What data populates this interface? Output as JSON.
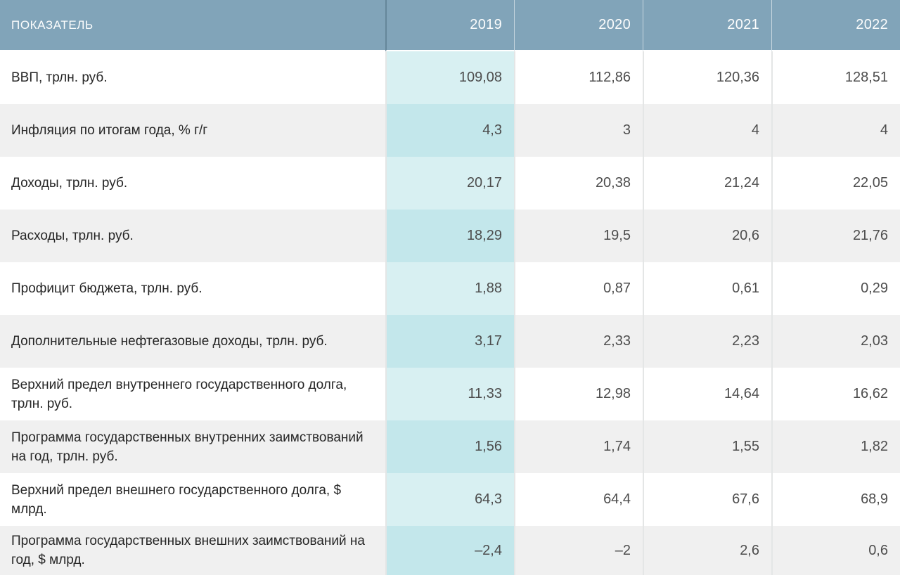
{
  "table": {
    "header": {
      "indicator": "ПОКАЗАТЕЛЬ",
      "years": [
        "2019",
        "2020",
        "2021",
        "2022"
      ]
    },
    "rows": [
      {
        "label": "ВВП, трлн. руб.",
        "values": [
          "109,08",
          "112,86",
          "120,36",
          "128,51"
        ]
      },
      {
        "label": "Инфляция по итогам года, % г/г",
        "values": [
          "4,3",
          "3",
          "4",
          "4"
        ]
      },
      {
        "label": "Доходы, трлн. руб.",
        "values": [
          "20,17",
          "20,38",
          "21,24",
          "22,05"
        ]
      },
      {
        "label": "Расходы, трлн. руб.",
        "values": [
          "18,29",
          "19,5",
          "20,6",
          "21,76"
        ]
      },
      {
        "label": "Профицит бюджета, трлн. руб.",
        "values": [
          "1,88",
          "0,87",
          "0,61",
          "0,29"
        ]
      },
      {
        "label": "Дополнительные нефтегазовые доходы, трлн. руб.",
        "values": [
          "3,17",
          "2,33",
          "2,23",
          "2,03"
        ]
      },
      {
        "label": "Верхний предел внутреннего государственного долга, трлн. руб.",
        "values": [
          "11,33",
          "12,98",
          "14,64",
          "16,62"
        ]
      },
      {
        "label": "Программа государственных внутренних заимствований на год, трлн. руб.",
        "values": [
          "1,56",
          "1,74",
          "1,55",
          "1,82"
        ]
      },
      {
        "label": "Верхний предел внешнего государственного долга, $ млрд.",
        "values": [
          "64,3",
          "64,4",
          "67,6",
          "68,9"
        ]
      },
      {
        "label": "Программа государственных внешних заимствований на год, $ млрд.",
        "values": [
          "–2,4",
          "–2",
          "2,6",
          "0,6"
        ]
      }
    ],
    "colors": {
      "header_bg": "#81a4b9",
      "header_text": "#fcfdfd",
      "row_odd_bg": "#ffffff",
      "row_even_bg": "#f0f0f0",
      "year2019_odd_bg": "#d8f0f2",
      "year2019_even_bg": "#c3e7eb",
      "label_text": "#262626",
      "value_text": "#4d4d4d",
      "column_divider": "#e4e6e6"
    }
  },
  "chart_data": {
    "type": "table",
    "title": "",
    "columns": [
      "ПОКАЗАТЕЛЬ",
      "2019",
      "2020",
      "2021",
      "2022"
    ],
    "x": [
      2019,
      2020,
      2021,
      2022
    ],
    "series": [
      {
        "name": "ВВП, трлн. руб.",
        "values": [
          109.08,
          112.86,
          120.36,
          128.51
        ]
      },
      {
        "name": "Инфляция по итогам года, % г/г",
        "values": [
          4.3,
          3,
          4,
          4
        ]
      },
      {
        "name": "Доходы, трлн. руб.",
        "values": [
          20.17,
          20.38,
          21.24,
          22.05
        ]
      },
      {
        "name": "Расходы, трлн. руб.",
        "values": [
          18.29,
          19.5,
          20.6,
          21.76
        ]
      },
      {
        "name": "Профицит бюджета, трлн. руб.",
        "values": [
          1.88,
          0.87,
          0.61,
          0.29
        ]
      },
      {
        "name": "Дополнительные нефтегазовые доходы, трлн. руб.",
        "values": [
          3.17,
          2.33,
          2.23,
          2.03
        ]
      },
      {
        "name": "Верхний предел внутреннего государственного долга, трлн. руб.",
        "values": [
          11.33,
          12.98,
          14.64,
          16.62
        ]
      },
      {
        "name": "Программа государственных внутренних заимствований на год, трлн. руб.",
        "values": [
          1.56,
          1.74,
          1.55,
          1.82
        ]
      },
      {
        "name": "Верхний предел внешнего государственного долга, $ млрд.",
        "values": [
          64.3,
          64.4,
          67.6,
          68.9
        ]
      },
      {
        "name": "Программа государственных внешних заимствований на год, $ млрд.",
        "values": [
          -2.4,
          -2,
          2.6,
          0.6
        ]
      }
    ],
    "highlighted_column": "2019",
    "legend_position": "none",
    "grid": false
  }
}
